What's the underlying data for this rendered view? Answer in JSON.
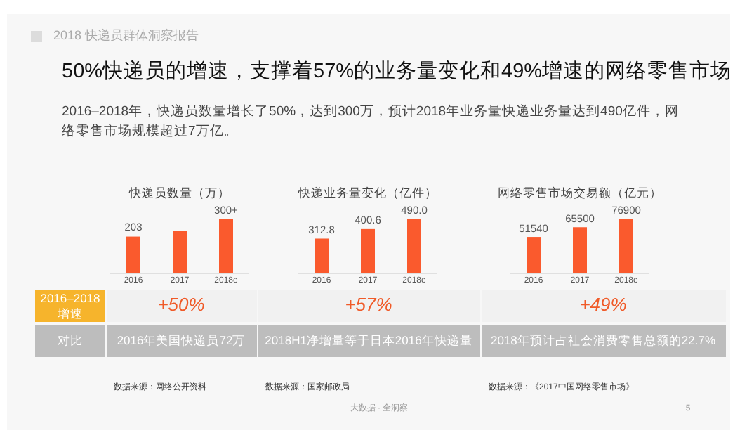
{
  "chart_data": [
    {
      "type": "other",
      "title": "50%快递员的增速，支撑着57%的业务量变化和49%增速的网络零售市场",
      "subtitle": "2016–2018年，快递员数量增长了50%，达到300万，预计2018年业务量快递业务量达到490亿件，网络零售市场规模超过7万亿。",
      "annotations": [
        "2018 快递员群体洞察报告",
        "2016–2018增速",
        "对比",
        "大数据 · 全洞察",
        "5"
      ]
    },
    {
      "type": "bar",
      "title": "快递员数量（万）",
      "categories": [
        "2016",
        "2017",
        "2018e"
      ],
      "values": [
        203,
        236,
        300
      ],
      "value_labels": [
        "203",
        null,
        "300+"
      ],
      "color": "#fa5a2d",
      "annotations": [
        "+50%",
        "2016年美国快递员72万",
        "数据来源：网络公开资料"
      ]
    },
    {
      "type": "bar",
      "title": "快递业务量变化（亿件）",
      "categories": [
        "2016",
        "2017",
        "2018e"
      ],
      "values": [
        312.8,
        400.6,
        490.0
      ],
      "value_labels": [
        "312.8",
        "400.6",
        "490.0"
      ],
      "color": "#fa5a2d",
      "annotations": [
        "+57%",
        "2018H1净增量等于日本2016年快递量",
        "数据来源：国家邮政局"
      ]
    },
    {
      "type": "bar",
      "title": "网络零售市场交易额（亿元）",
      "categories": [
        "2016",
        "2017",
        "2018e"
      ],
      "values": [
        51540,
        65500,
        76900
      ],
      "value_labels": [
        "51540",
        "65500",
        "76900"
      ],
      "color": "#fa5a2d",
      "annotations": [
        "+49%",
        "2018年预计占社会消费零售总额的22.7%",
        "数据来源：《2017中国网络零售市场》"
      ]
    }
  ]
}
